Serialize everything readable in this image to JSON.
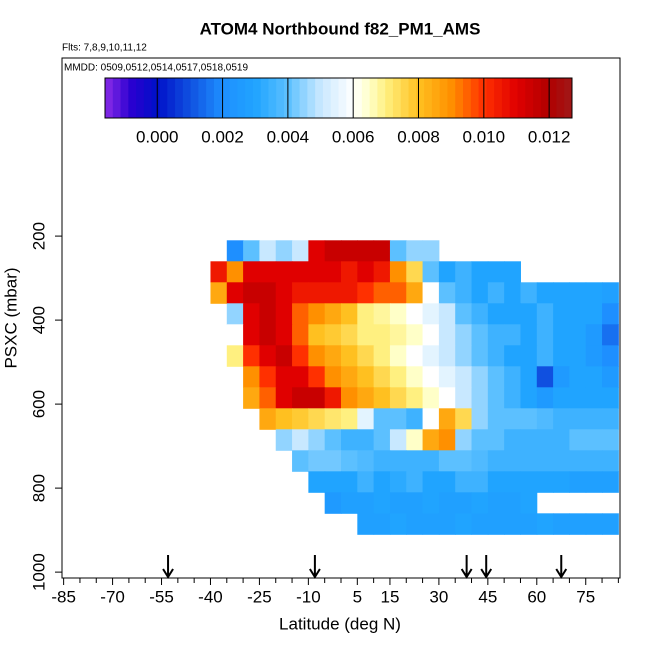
{
  "chart_data": {
    "type": "heatmap",
    "title": "ATOM4 Northbound f82_PM1_AMS",
    "subtitle": "Flts: 7,8,9,10,11,12",
    "annotation": "MMDD: 0509,0512,0514,0517,0518,0519",
    "xlabel": "Latitude (deg N)",
    "ylabel": "PSXC (mbar)",
    "xlim": [
      -85.5,
      85.5
    ],
    "ylim": [
      1014,
      -224
    ],
    "xticks": [
      -85,
      -70,
      -55,
      -40,
      -25,
      -10,
      5,
      15,
      30,
      45,
      60,
      75
    ],
    "xminorticks": [
      -80,
      -75,
      -65,
      -60,
      -50,
      -45,
      -35,
      -30,
      -20,
      -15,
      -5,
      0,
      10,
      20,
      25,
      35,
      40,
      50,
      55,
      65,
      70,
      80,
      85
    ],
    "yticks": [
      200,
      400,
      600,
      800,
      1000
    ],
    "x_edges": [
      -40,
      -35,
      -30,
      -25,
      -20,
      -15,
      -10,
      -5,
      0,
      5,
      10,
      15,
      20,
      25,
      30,
      35,
      40,
      45,
      50,
      55,
      60,
      65,
      70,
      75,
      80,
      85
    ],
    "y_edges": [
      210,
      260,
      310,
      360,
      410,
      460,
      510,
      560,
      610,
      660,
      710,
      760,
      810,
      860,
      910
    ],
    "values": [
      [
        null,
        0.002,
        0.004,
        0.005,
        0.0045,
        0.005,
        0.011,
        0.0115,
        0.0115,
        0.0115,
        0.0115,
        0.004,
        0.0045,
        0.0045,
        null,
        null,
        null,
        null,
        null,
        null,
        null,
        null,
        null,
        null,
        null
      ],
      [
        0.0105,
        0.009,
        0.011,
        0.011,
        0.011,
        0.011,
        0.011,
        0.011,
        0.0105,
        0.011,
        0.0105,
        0.009,
        0.0075,
        0.004,
        0.003,
        0.0035,
        0.003,
        0.003,
        0.003,
        null,
        null,
        null,
        null,
        null,
        null
      ],
      [
        0.0085,
        0.011,
        0.0115,
        0.0115,
        0.011,
        0.0105,
        0.0105,
        0.0105,
        0.0105,
        0.01,
        0.0095,
        0.0095,
        0.0085,
        0.006,
        0.004,
        0.0035,
        0.003,
        0.0035,
        0.003,
        0.0035,
        0.003,
        0.003,
        0.003,
        0.003,
        0.0028
      ],
      [
        null,
        0.0045,
        0.011,
        0.0115,
        0.011,
        0.0095,
        0.009,
        0.0085,
        0.008,
        0.007,
        0.0068,
        0.0065,
        0.006,
        0.0055,
        0.005,
        0.004,
        0.0035,
        0.003,
        0.003,
        0.003,
        0.0035,
        0.003,
        0.003,
        0.003,
        0.002
      ],
      [
        null,
        0.006,
        0.011,
        0.0115,
        0.011,
        0.0095,
        0.008,
        0.0078,
        0.0075,
        0.007,
        0.007,
        0.0068,
        0.0065,
        0.006,
        0.005,
        0.0045,
        0.004,
        0.0035,
        0.0035,
        0.003,
        0.0035,
        0.003,
        0.003,
        0.0025,
        0.0015
      ],
      [
        null,
        0.007,
        0.01,
        0.011,
        0.0115,
        0.01,
        0.009,
        0.0085,
        0.008,
        0.0075,
        0.007,
        0.0065,
        0.006,
        0.0055,
        0.005,
        0.0045,
        0.004,
        0.0035,
        0.003,
        0.003,
        0.0035,
        0.003,
        0.003,
        0.0025,
        0.002
      ],
      [
        null,
        null,
        0.009,
        0.01,
        0.011,
        0.011,
        0.01,
        0.009,
        0.0085,
        0.008,
        0.0075,
        0.007,
        0.0065,
        0.006,
        0.0055,
        0.005,
        0.0045,
        0.004,
        0.0035,
        0.003,
        0.001,
        0.0025,
        0.003,
        0.003,
        0.0025
      ],
      [
        null,
        null,
        0.0085,
        0.0095,
        0.011,
        0.0115,
        0.0115,
        0.0105,
        0.009,
        0.0085,
        0.008,
        0.0075,
        0.007,
        0.0065,
        0.006,
        0.005,
        0.0045,
        0.004,
        0.0035,
        0.003,
        0.0025,
        0.003,
        0.003,
        0.003,
        0.003
      ],
      [
        null,
        null,
        null,
        0.0085,
        0.008,
        0.0078,
        0.0075,
        0.0072,
        0.007,
        0.0055,
        0.004,
        0.004,
        0.0035,
        0.006,
        0.0085,
        0.0075,
        0.0045,
        0.004,
        0.004,
        0.004,
        0.0038,
        0.0035,
        0.0035,
        0.0035,
        0.0035
      ],
      [
        null,
        null,
        null,
        null,
        0.0045,
        0.005,
        0.0045,
        0.004,
        0.0035,
        0.0035,
        0.004,
        0.005,
        0.0065,
        0.0085,
        0.009,
        0.0045,
        0.004,
        0.004,
        0.0035,
        0.0035,
        0.0035,
        0.0035,
        0.004,
        0.004,
        0.004
      ],
      [
        null,
        null,
        null,
        null,
        null,
        0.004,
        0.0042,
        0.0042,
        0.004,
        0.0038,
        0.0035,
        0.0035,
        0.0035,
        0.0035,
        0.004,
        0.004,
        0.0038,
        0.0035,
        0.0035,
        0.0035,
        0.0035,
        0.0035,
        0.0035,
        0.0035,
        0.0035
      ],
      [
        null,
        null,
        null,
        null,
        null,
        null,
        0.003,
        0.003,
        0.003,
        0.0035,
        0.003,
        0.0032,
        0.0035,
        0.003,
        0.003,
        0.0035,
        0.0035,
        0.003,
        0.003,
        0.003,
        0.003,
        0.003,
        0.0028,
        0.0028,
        0.0028
      ],
      [
        null,
        null,
        null,
        null,
        null,
        null,
        null,
        0.0025,
        0.0028,
        0.0028,
        0.003,
        0.0028,
        0.0028,
        0.003,
        0.0028,
        0.0028,
        0.003,
        0.0028,
        0.0028,
        0.003,
        null,
        null,
        null,
        null,
        null
      ],
      [
        null,
        null,
        null,
        null,
        null,
        null,
        null,
        null,
        null,
        0.0028,
        0.0028,
        0.003,
        0.0028,
        0.0028,
        0.0028,
        0.003,
        0.0028,
        0.0028,
        0.0028,
        0.0028,
        0.003,
        0.0028,
        0.0028,
        0.0028,
        0.0028
      ]
    ],
    "clim": [
      -0.0016,
      0.0127
    ],
    "cticks": [
      {
        "value": 0,
        "label": "0.000"
      },
      {
        "value": 0.002,
        "label": "0.002"
      },
      {
        "value": 0.004,
        "label": "0.004"
      },
      {
        "value": 0.006,
        "label": "0.006"
      },
      {
        "value": 0.008,
        "label": "0.008"
      },
      {
        "value": 0.01,
        "label": "0.010"
      },
      {
        "value": 0.012,
        "label": "0.012"
      }
    ],
    "colormap": [
      [
        -0.0016,
        "#8a2be8"
      ],
      [
        -0.0008,
        "#2a00d0"
      ],
      [
        0,
        "#0010c8"
      ],
      [
        0.001,
        "#1050e0"
      ],
      [
        0.002,
        "#1e8fff"
      ],
      [
        0.003,
        "#20a4ff"
      ],
      [
        0.004,
        "#5cc0ff"
      ],
      [
        0.005,
        "#c8e8ff"
      ],
      [
        0.006,
        "#ffffff"
      ],
      [
        0.0065,
        "#ffffc8"
      ],
      [
        0.007,
        "#fff080"
      ],
      [
        0.008,
        "#ffc020"
      ],
      [
        0.009,
        "#ff9000"
      ],
      [
        0.01,
        "#ff3000"
      ],
      [
        0.011,
        "#e00000"
      ],
      [
        0.012,
        "#b00000"
      ],
      [
        0.0127,
        "#a01818"
      ]
    ],
    "arrows": [
      -53,
      -8,
      38.5,
      44.5,
      67.5
    ]
  }
}
